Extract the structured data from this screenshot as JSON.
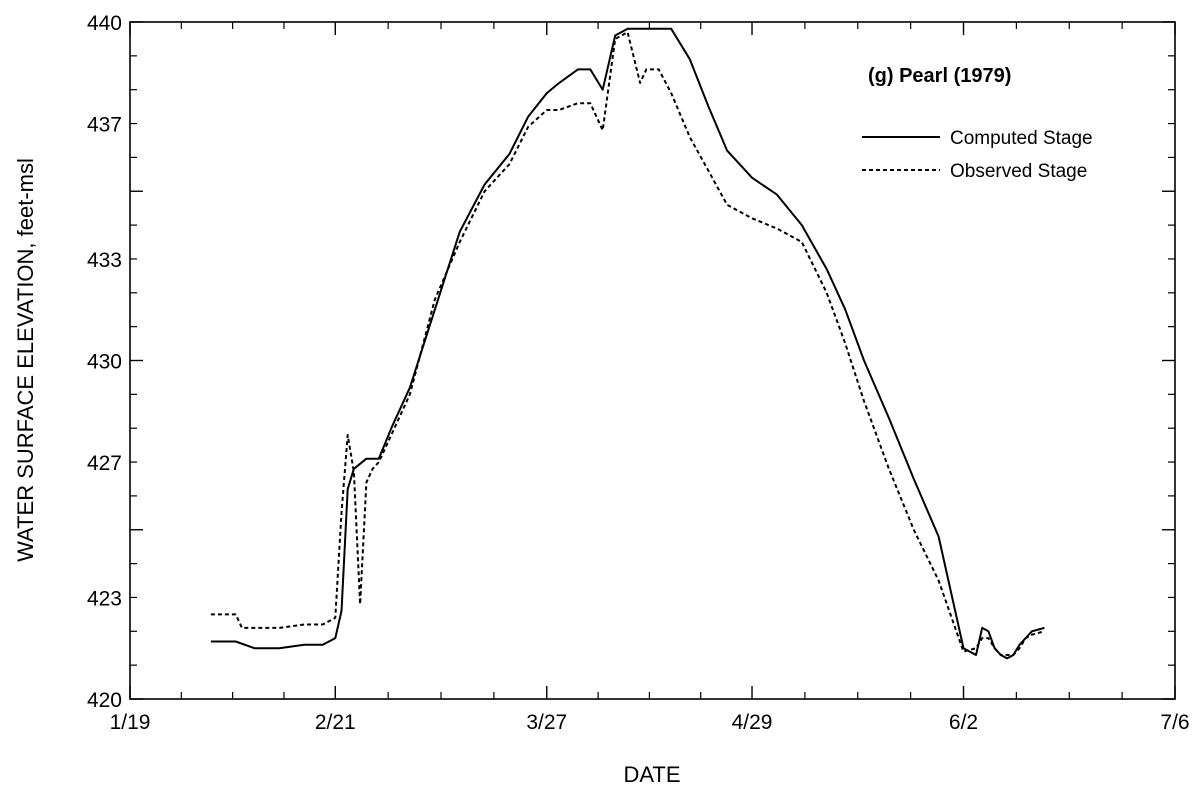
{
  "chart_data": {
    "type": "line",
    "title": "(g) Pearl (1979)",
    "xlabel": "DATE",
    "ylabel": "WATER SURFACE ELEVATION, feet-msl",
    "x_unit": "days (1979)",
    "xlim": [
      "1/19",
      "7/6"
    ],
    "ylim": [
      420,
      440
    ],
    "x_ticks": [
      "1/19",
      "2/21",
      "3/27",
      "4/29",
      "6/2",
      "7/6"
    ],
    "y_ticks": [
      "420",
      "423",
      "427",
      "430",
      "433",
      "437",
      "440"
    ],
    "legend_position": "top-right",
    "grid": false,
    "series": [
      {
        "name": "Computed Stage",
        "style": "solid",
        "x": [
          "2/1",
          "2/5",
          "2/8",
          "2/12",
          "2/16",
          "2/19",
          "2/21",
          "2/22",
          "2/23",
          "2/24",
          "2/26",
          "2/27",
          "2/28",
          "3/2",
          "3/5",
          "3/9",
          "3/13",
          "3/17",
          "3/21",
          "3/24",
          "3/27",
          "3/29",
          "4/1",
          "4/3",
          "4/5",
          "4/7",
          "4/9",
          "4/11",
          "4/12",
          "4/14",
          "4/16",
          "4/19",
          "4/22",
          "4/25",
          "4/29",
          "5/3",
          "5/7",
          "5/11",
          "5/14",
          "5/17",
          "5/21",
          "5/25",
          "5/29",
          "6/2",
          "6/4",
          "6/5",
          "6/6",
          "6/7",
          "6/8",
          "6/9",
          "6/10",
          "6/11",
          "6/12",
          "6/13",
          "6/15"
        ],
        "values": [
          421.7,
          421.7,
          421.5,
          421.5,
          421.6,
          421.6,
          421.8,
          422.6,
          426.2,
          426.8,
          427.1,
          427.1,
          427.1,
          428.0,
          429.2,
          431.5,
          433.8,
          435.2,
          436.1,
          437.2,
          437.9,
          438.2,
          438.6,
          438.6,
          438.0,
          439.6,
          439.8,
          439.8,
          439.8,
          439.8,
          439.8,
          438.9,
          437.5,
          436.2,
          435.4,
          434.9,
          434.0,
          432.7,
          431.5,
          430.0,
          428.3,
          426.5,
          424.8,
          421.5,
          421.3,
          422.1,
          422.0,
          421.5,
          421.3,
          421.2,
          421.3,
          421.6,
          421.8,
          422.0,
          422.1
        ]
      },
      {
        "name": "Observed Stage",
        "style": "dashed",
        "x": [
          "2/1",
          "2/5",
          "2/6",
          "2/8",
          "2/12",
          "2/16",
          "2/19",
          "2/21",
          "2/22",
          "2/23",
          "2/24",
          "2/25",
          "2/26",
          "2/27",
          "2/28",
          "3/2",
          "3/5",
          "3/9",
          "3/13",
          "3/17",
          "3/21",
          "3/24",
          "3/27",
          "3/29",
          "4/1",
          "4/3",
          "4/5",
          "4/7",
          "4/9",
          "4/11",
          "4/12",
          "4/14",
          "4/16",
          "4/19",
          "4/22",
          "4/25",
          "4/29",
          "5/3",
          "5/7",
          "5/11",
          "5/14",
          "5/17",
          "5/21",
          "5/25",
          "5/29",
          "6/2",
          "6/4",
          "6/5",
          "6/6",
          "6/7",
          "6/8",
          "6/9",
          "6/10",
          "6/11",
          "6/12",
          "6/13",
          "6/15"
        ],
        "values": [
          422.5,
          422.5,
          422.1,
          422.1,
          422.1,
          422.2,
          422.2,
          422.4,
          425.5,
          427.8,
          426.7,
          422.8,
          426.4,
          426.8,
          427.0,
          427.8,
          429.0,
          431.8,
          433.5,
          435.0,
          435.8,
          436.9,
          437.4,
          437.4,
          437.6,
          437.6,
          436.8,
          439.5,
          439.7,
          438.2,
          438.6,
          438.6,
          437.9,
          436.6,
          435.6,
          434.6,
          434.2,
          433.9,
          433.5,
          432.0,
          430.5,
          428.8,
          426.8,
          425.0,
          423.5,
          421.4,
          421.5,
          421.8,
          421.8,
          421.5,
          421.3,
          421.3,
          421.3,
          421.5,
          421.8,
          421.9,
          422.0
        ]
      }
    ]
  }
}
